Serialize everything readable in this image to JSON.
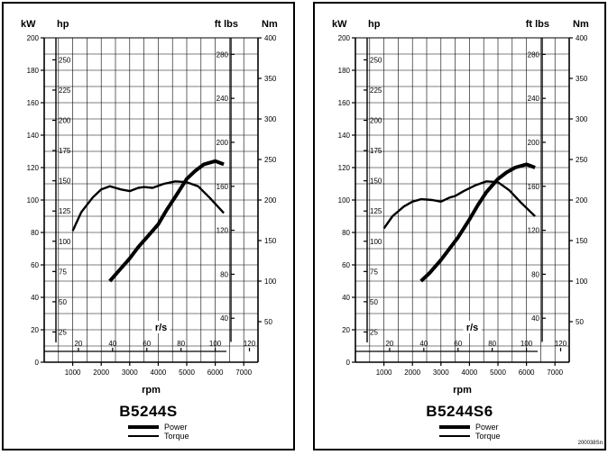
{
  "doc_code": "200038Sn",
  "chart_data": [
    {
      "type": "line",
      "model": "B5244S",
      "x_label": "rpm",
      "x_ticks": [
        "1000",
        "2000",
        "3000",
        "4000",
        "5000",
        "6000",
        "7000"
      ],
      "rs_label": "r/s",
      "rs_ticks": [
        "20",
        "40",
        "60",
        "80",
        "100",
        "120"
      ],
      "kw_label": "kW",
      "kw_ticks": [
        "0",
        "20",
        "40",
        "60",
        "80",
        "100",
        "120",
        "140",
        "160",
        "180",
        "200"
      ],
      "hp_label": "hp",
      "hp_ticks": [
        "25",
        "50",
        "75",
        "100",
        "125",
        "150",
        "175",
        "200",
        "225",
        "250"
      ],
      "ftlbs_label": "ft lbs",
      "ftlbs_ticks": [
        "40",
        "80",
        "120",
        "160",
        "200",
        "240",
        "280"
      ],
      "nm_label": "Nm",
      "nm_ticks": [
        "50",
        "100",
        "150",
        "200",
        "250",
        "300",
        "350",
        "400"
      ],
      "xlim": [
        0,
        7500
      ],
      "kw_lim": [
        0,
        200
      ],
      "nm_lim": [
        0,
        400
      ],
      "series": [
        {
          "name": "Power",
          "unit": "kW",
          "x": [
            2300,
            2600,
            3000,
            3300,
            3600,
            4000,
            4300,
            4600,
            5000,
            5300,
            5600,
            6000,
            6300
          ],
          "y": [
            50,
            56,
            64,
            71,
            77,
            85,
            94,
            102,
            113,
            118,
            122,
            124,
            122
          ]
        },
        {
          "name": "Torque",
          "unit": "Nm",
          "x": [
            1000,
            1300,
            1700,
            2000,
            2300,
            2700,
            3000,
            3300,
            3500,
            3800,
            4200,
            4600,
            5000,
            5400,
            5800,
            6300
          ],
          "y": [
            162,
            185,
            203,
            213,
            217,
            213,
            211,
            215,
            216,
            215,
            220,
            223,
            222,
            217,
            203,
            184
          ]
        }
      ],
      "legend": [
        "Power",
        "Torque"
      ]
    },
    {
      "type": "line",
      "model": "B5244S6",
      "x_label": "rpm",
      "x_ticks": [
        "1000",
        "2000",
        "3000",
        "4000",
        "5000",
        "6000",
        "7000"
      ],
      "rs_label": "r/s",
      "rs_ticks": [
        "20",
        "40",
        "60",
        "80",
        "100",
        "120"
      ],
      "kw_label": "kW",
      "kw_ticks": [
        "0",
        "20",
        "40",
        "60",
        "80",
        "100",
        "120",
        "140",
        "160",
        "180",
        "200"
      ],
      "hp_label": "hp",
      "hp_ticks": [
        "25",
        "50",
        "75",
        "100",
        "125",
        "150",
        "175",
        "200",
        "225",
        "250"
      ],
      "ftlbs_label": "ft lbs",
      "ftlbs_ticks": [
        "40",
        "80",
        "120",
        "160",
        "200",
        "240",
        "280"
      ],
      "nm_label": "Nm",
      "nm_ticks": [
        "50",
        "100",
        "150",
        "200",
        "250",
        "300",
        "350",
        "400"
      ],
      "xlim": [
        0,
        7500
      ],
      "kw_lim": [
        0,
        200
      ],
      "nm_lim": [
        0,
        400
      ],
      "series": [
        {
          "name": "Power",
          "unit": "kW",
          "x": [
            2300,
            2600,
            3000,
            3300,
            3600,
            4000,
            4300,
            4600,
            5000,
            5300,
            5600,
            6000,
            6300
          ],
          "y": [
            50,
            55,
            63,
            70,
            77,
            88,
            97,
            105,
            113,
            117,
            120,
            122,
            120
          ]
        },
        {
          "name": "Torque",
          "unit": "Nm",
          "x": [
            1000,
            1300,
            1700,
            2000,
            2300,
            2700,
            3000,
            3300,
            3500,
            3800,
            4200,
            4600,
            5000,
            5400,
            5800,
            6300
          ],
          "y": [
            165,
            180,
            192,
            198,
            201,
            200,
            198,
            203,
            205,
            211,
            218,
            223,
            222,
            212,
            197,
            180
          ]
        }
      ],
      "legend": [
        "Power",
        "Torque"
      ]
    }
  ]
}
